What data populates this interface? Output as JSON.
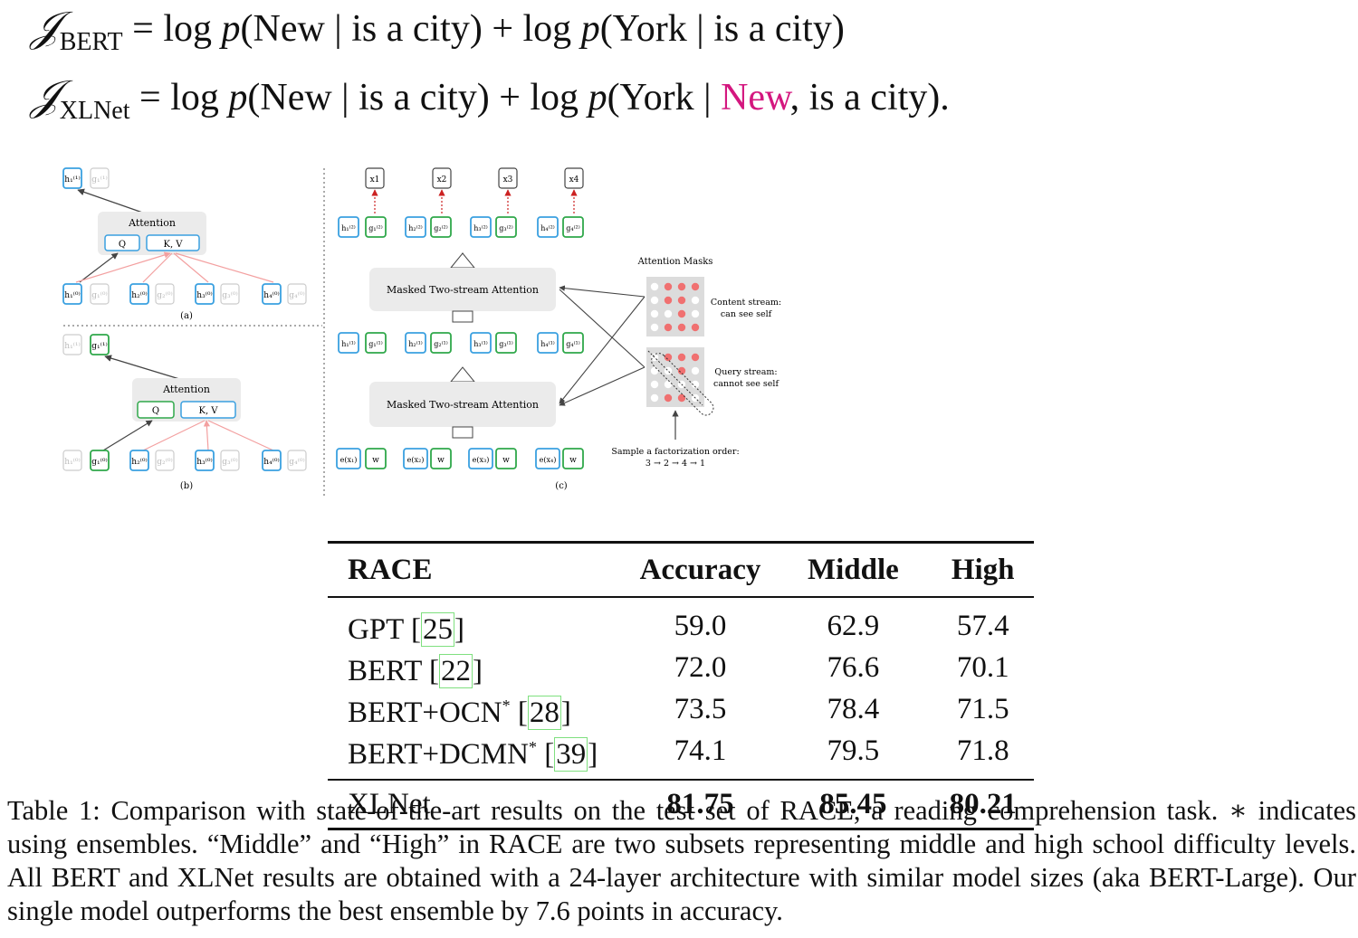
{
  "equations": {
    "bert": {
      "lhs_sub": "BERT",
      "equals": "=",
      "term1_log": "log",
      "term1_p": "p",
      "term1_args": "(New | is a city)",
      "plus": "+",
      "term2_log": "log",
      "term2_p": "p",
      "term2_args": "(York | is a city)"
    },
    "xlnet": {
      "lhs_sub": "XLNet",
      "equals": "=",
      "term1_log": "log",
      "term1_p": "p",
      "term1_args": "(New | is a city)",
      "plus": "+",
      "term2_log": "log",
      "term2_p": "p",
      "term2_open": "(York | ",
      "term2_highlight": "New",
      "term2_close": ", is a city)."
    },
    "highlight_color": "#d4177f"
  },
  "figure": {
    "panel_a_label": "(a)",
    "panel_b_label": "(b)",
    "panel_c_label": "(c)",
    "attention_label": "Attention",
    "q_label": "Q",
    "kv_label": "K, V",
    "masked_attention_label": "Masked Two-stream Attention",
    "attention_masks_label": "Attention Masks",
    "content_stream_line1": "Content stream:",
    "content_stream_line2": "can see self",
    "query_stream_line1": "Query stream:",
    "query_stream_line2": "cannot see self",
    "factorization_line1": "Sample a factorization order:",
    "factorization_line2": "3 → 2 → 4 → 1",
    "w_label": "w",
    "x_labels": [
      "x1",
      "x2",
      "x3",
      "x4"
    ],
    "colors": {
      "content": "#3aa0e0",
      "query": "#2fa84a",
      "mask_on": "#f07070",
      "mask_off": "#ffffff",
      "panel_bg": "#ebebeb"
    }
  },
  "table": {
    "headers": [
      "RACE",
      "Accuracy",
      "Middle",
      "High"
    ],
    "rows": [
      {
        "name": "GPT ",
        "star": "",
        "cite": "25",
        "accuracy": "59.0",
        "middle": "62.9",
        "high": "57.4"
      },
      {
        "name": "BERT ",
        "star": "",
        "cite": "22",
        "accuracy": "72.0",
        "middle": "76.6",
        "high": "70.1"
      },
      {
        "name": "BERT+OCN",
        "star": "*",
        "cite": "28",
        "accuracy": "73.5",
        "middle": "78.4",
        "high": "71.5"
      },
      {
        "name": "BERT+DCMN",
        "star": "*",
        "cite": "39",
        "accuracy": "74.1",
        "middle": "79.5",
        "high": "71.8"
      }
    ],
    "final_row": {
      "name": "XLNet",
      "accuracy": "81.75",
      "middle": "85.45",
      "high": "80.21"
    }
  },
  "caption": {
    "label": "Table 1:",
    "text": "Comparison with state-of-the-art results on the test set of RACE, a reading comprehension task. ∗ indicates using ensembles. “Middle” and “High” in RACE are two subsets representing middle and high school difficulty levels. All BERT and XLNet results are obtained with a 24-layer architecture with similar model sizes (aka BERT-Large). Our single model outperforms the best ensemble by 7.6 points in accuracy."
  }
}
